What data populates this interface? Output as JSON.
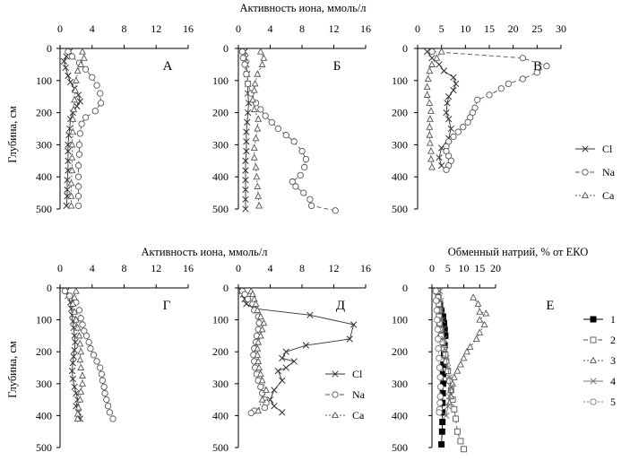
{
  "texts": {
    "top_title": "Активность иона, ммоль/л",
    "bottom_title_left": "Активность иона, ммоль/л",
    "bottom_title_right": "Обменный натрий, % от ЕКО",
    "ylabel": "Глубина, см"
  },
  "chart_data": [
    {
      "type": "line",
      "panel": "А",
      "xlim": [
        0,
        16
      ],
      "xticks": [
        0,
        4,
        8,
        12,
        16
      ],
      "ylim": [
        0,
        500
      ],
      "yticks": [
        0,
        100,
        200,
        300,
        400,
        500
      ],
      "yreversed": true,
      "series": [
        {
          "name": "Cl",
          "marker": "x",
          "line": "solid",
          "color": "#333333",
          "x": [
            1.2,
            0.8,
            0.5,
            0.7,
            1.0,
            1.3,
            1.8,
            2.3,
            2.5,
            2.1,
            1.6,
            1.3,
            1.2,
            1.1,
            1.0,
            1.0,
            1.0,
            1.0,
            0.9,
            0.9,
            0.9,
            0.8
          ],
          "y": [
            10,
            25,
            40,
            60,
            85,
            105,
            125,
            145,
            165,
            180,
            200,
            220,
            250,
            270,
            300,
            320,
            350,
            380,
            410,
            440,
            460,
            490
          ]
        },
        {
          "name": "Na",
          "marker": "o",
          "line": "dashed",
          "color": "#555555",
          "x": [
            1.0,
            1.5,
            2.4,
            3.2,
            4.0,
            4.6,
            5.0,
            5.1,
            4.4,
            3.2,
            2.7,
            2.5,
            2.4,
            2.4,
            2.3,
            2.3,
            2.3,
            2.3,
            2.3
          ],
          "y": [
            10,
            25,
            45,
            65,
            90,
            115,
            140,
            170,
            195,
            215,
            235,
            265,
            300,
            330,
            365,
            400,
            430,
            460,
            490
          ]
        },
        {
          "name": "Ca",
          "marker": "^",
          "line": "dotted",
          "color": "#555555",
          "x": [
            2.8,
            3.0,
            2.6,
            2.2,
            2.0,
            1.9,
            1.8,
            1.7,
            1.6,
            1.6,
            1.5,
            1.5,
            1.5,
            1.4,
            1.4,
            1.4
          ],
          "y": [
            10,
            30,
            50,
            70,
            100,
            130,
            160,
            190,
            220,
            260,
            300,
            340,
            380,
            420,
            460,
            490
          ]
        }
      ]
    },
    {
      "type": "line",
      "panel": "Б",
      "xlim": [
        0,
        16
      ],
      "xticks": [
        0,
        4,
        8,
        12,
        16
      ],
      "ylim": [
        0,
        500
      ],
      "yticks": [
        0,
        100,
        200,
        300,
        400,
        500
      ],
      "yreversed": true,
      "series": [
        {
          "name": "Cl",
          "marker": "x",
          "line": "solid",
          "color": "#333333",
          "x": [
            0.8,
            0.9,
            1.0,
            1.1,
            1.2,
            1.2,
            1.3,
            1.2,
            1.1,
            1.0,
            1.0,
            1.0,
            0.9,
            0.9,
            0.9,
            0.9,
            0.9,
            0.9
          ],
          "y": [
            10,
            30,
            50,
            80,
            110,
            140,
            170,
            200,
            230,
            260,
            290,
            320,
            350,
            380,
            410,
            440,
            470,
            500
          ]
        },
        {
          "name": "Na",
          "marker": "o",
          "line": "dashed",
          "color": "#555555",
          "x": [
            0.5,
            0.6,
            0.8,
            1.0,
            1.2,
            1.6,
            2.2,
            2.8,
            3.4,
            4.2,
            5.0,
            6.0,
            7.0,
            8.0,
            8.5,
            8.3,
            7.8,
            6.8,
            7.2,
            8.2,
            9.0,
            9.2,
            12.2
          ],
          "y": [
            10,
            30,
            50,
            80,
            110,
            140,
            170,
            190,
            210,
            230,
            250,
            270,
            290,
            320,
            345,
            370,
            395,
            415,
            430,
            450,
            470,
            490,
            505
          ]
        },
        {
          "name": "Ca",
          "marker": "^",
          "line": "dotted",
          "color": "#555555",
          "x": [
            2.8,
            3.2,
            3.0,
            2.4,
            2.1,
            2.0,
            1.8,
            2.0,
            2.5,
            2.4,
            2.2,
            2.0,
            2.0,
            2.2,
            2.3,
            2.4,
            2.5,
            2.6
          ],
          "y": [
            10,
            30,
            50,
            80,
            110,
            130,
            160,
            190,
            220,
            250,
            280,
            310,
            340,
            370,
            400,
            430,
            460,
            490
          ]
        }
      ]
    },
    {
      "type": "line",
      "panel": "В",
      "xlim": [
        0,
        30
      ],
      "xticks": [
        0,
        5,
        10,
        15,
        20,
        25,
        30
      ],
      "ylim": [
        0,
        500
      ],
      "yticks": [
        0,
        100,
        200,
        300,
        400,
        500
      ],
      "yreversed": true,
      "legend": {
        "position": "right",
        "entries": [
          "Cl",
          "Na",
          "Ca"
        ]
      },
      "series": [
        {
          "name": "Cl",
          "marker": "x",
          "line": "solid",
          "color": "#333333",
          "x": [
            2.0,
            3.0,
            4.5,
            5.5,
            7.5,
            8.0,
            7.5,
            6.5,
            6.2,
            6.0,
            6.5,
            7.0,
            6.5,
            5.0,
            4.5,
            5.0
          ],
          "y": [
            10,
            30,
            50,
            70,
            90,
            110,
            130,
            150,
            170,
            200,
            220,
            250,
            280,
            310,
            340,
            365
          ]
        },
        {
          "name": "Na",
          "marker": "o",
          "line": "dashed",
          "color": "#555555",
          "x": [
            3.0,
            22.0,
            27.0,
            25.0,
            22.0,
            19.0,
            17.5,
            15.0,
            12.5,
            12.0,
            11.5,
            11.0,
            10.5,
            9.5,
            8.5,
            7.5,
            6.5,
            6.0,
            6.0,
            6.5,
            7.0,
            6.5,
            6.0
          ],
          "y": [
            10,
            30,
            55,
            75,
            95,
            110,
            125,
            145,
            160,
            185,
            200,
            215,
            230,
            245,
            260,
            275,
            290,
            305,
            320,
            335,
            350,
            365,
            378
          ]
        },
        {
          "name": "Ca",
          "marker": "^",
          "line": "dotted",
          "color": "#555555",
          "x": [
            5.0,
            4.0,
            3.0,
            2.5,
            2.2,
            2.0,
            2.0,
            2.5,
            2.8,
            2.6,
            2.5,
            2.5,
            2.6,
            2.8,
            2.8,
            3.0
          ],
          "y": [
            10,
            30,
            50,
            70,
            95,
            120,
            145,
            170,
            195,
            220,
            245,
            270,
            295,
            320,
            345,
            370
          ]
        }
      ]
    },
    {
      "type": "line",
      "panel": "Г",
      "xlim": [
        0,
        16
      ],
      "xticks": [
        0,
        4,
        8,
        12,
        16
      ],
      "ylim": [
        0,
        500
      ],
      "yticks": [
        0,
        100,
        200,
        300,
        400,
        500
      ],
      "yreversed": true,
      "series": [
        {
          "name": "Cl",
          "marker": "x",
          "line": "solid",
          "color": "#333333",
          "x": [
            0.8,
            1.0,
            1.3,
            1.4,
            1.5,
            1.6,
            1.7,
            1.8,
            1.9,
            1.8,
            1.7,
            1.6,
            1.5,
            1.6,
            1.8,
            2.0,
            2.2,
            2.0,
            2.3,
            2.5
          ],
          "y": [
            10,
            25,
            45,
            65,
            85,
            105,
            125,
            150,
            170,
            195,
            215,
            235,
            260,
            285,
            310,
            330,
            350,
            370,
            390,
            410
          ]
        },
        {
          "name": "Na",
          "marker": "o",
          "line": "dashed",
          "color": "#555555",
          "x": [
            0.6,
            1.2,
            2.0,
            2.4,
            2.6,
            2.8,
            3.0,
            3.3,
            3.6,
            3.8,
            4.2,
            4.6,
            5.0,
            5.2,
            5.3,
            5.5,
            5.6,
            5.8,
            6.0,
            6.2,
            6.6
          ],
          "y": [
            10,
            25,
            45,
            70,
            95,
            115,
            135,
            150,
            170,
            190,
            210,
            230,
            250,
            270,
            290,
            310,
            330,
            350,
            370,
            390,
            410
          ]
        },
        {
          "name": "Ca",
          "marker": "^",
          "line": "dotted",
          "color": "#555555",
          "x": [
            2.0,
            1.8,
            1.6,
            1.8,
            2.0,
            2.2,
            2.4,
            2.5,
            2.6,
            2.5,
            2.6,
            2.8,
            2.8,
            2.6,
            2.5,
            2.3,
            2.2,
            2.2
          ],
          "y": [
            10,
            30,
            50,
            75,
            100,
            125,
            150,
            175,
            200,
            225,
            250,
            275,
            300,
            325,
            350,
            375,
            395,
            410
          ]
        }
      ]
    },
    {
      "type": "line",
      "panel": "Д",
      "xlim": [
        0,
        16
      ],
      "xticks": [
        0,
        4,
        8,
        12,
        16
      ],
      "ylim": [
        0,
        500
      ],
      "yticks": [
        0,
        100,
        200,
        300,
        400,
        500
      ],
      "yreversed": true,
      "legend": {
        "position": "lower right",
        "entries": [
          "Cl",
          "Na",
          "Ca"
        ]
      },
      "series": [
        {
          "name": "Cl",
          "marker": "x",
          "line": "solid",
          "color": "#333333",
          "x": [
            0.4,
            0.6,
            0.8,
            1.0,
            2.0,
            9.0,
            14.5,
            14.0,
            8.5,
            6.0,
            5.5,
            7.0,
            6.0,
            5.0,
            5.5,
            4.5,
            4.0,
            4.5,
            5.5
          ],
          "y": [
            10,
            20,
            35,
            50,
            65,
            85,
            115,
            160,
            180,
            200,
            220,
            230,
            250,
            260,
            290,
            320,
            350,
            370,
            390
          ]
        },
        {
          "name": "Na",
          "marker": "o",
          "line": "dashed",
          "color": "#555555",
          "x": [
            0.5,
            0.8,
            1.2,
            1.8,
            2.0,
            2.5,
            2.6,
            2.5,
            2.3,
            2.2,
            2.0,
            1.9,
            2.0,
            2.1,
            2.3,
            2.5,
            2.8,
            3.0,
            3.3,
            3.5,
            3.3,
            2.0,
            1.6
          ],
          "y": [
            10,
            20,
            35,
            50,
            70,
            90,
            110,
            130,
            150,
            170,
            190,
            210,
            230,
            250,
            270,
            290,
            310,
            330,
            350,
            360,
            375,
            385,
            392
          ]
        },
        {
          "name": "Ca",
          "marker": "^",
          "line": "dotted",
          "color": "#555555",
          "x": [
            1.6,
            1.8,
            2.0,
            2.2,
            2.4,
            2.8,
            3.2,
            3.0,
            2.8,
            2.5,
            2.4,
            2.4,
            2.5,
            2.6,
            2.8,
            3.0,
            3.5,
            3.0,
            2.5
          ],
          "y": [
            10,
            20,
            35,
            50,
            70,
            90,
            110,
            130,
            150,
            170,
            190,
            210,
            230,
            250,
            270,
            290,
            320,
            350,
            385
          ]
        }
      ]
    },
    {
      "type": "line",
      "panel": "Е",
      "xlim": [
        0,
        20
      ],
      "xticks": [
        0,
        5,
        10,
        15,
        20
      ],
      "ylim": [
        0,
        500
      ],
      "yticks": [
        0,
        100,
        200,
        300,
        400,
        500
      ],
      "yreversed": true,
      "legend": {
        "position": "right",
        "entries": [
          "1",
          "2",
          "3",
          "4",
          "5"
        ]
      },
      "series": [
        {
          "name": "1",
          "marker": "s_filled",
          "line": "solid",
          "color": "#000000",
          "x": [
            1.5,
            2.0,
            2.5,
            3.0,
            3.5,
            3.8,
            4.0,
            4.2,
            4.0,
            3.8,
            3.6,
            3.5,
            3.5,
            3.4,
            3.3,
            3.3,
            3.3,
            3.2,
            3.0
          ],
          "y": [
            10,
            30,
            50,
            70,
            90,
            110,
            130,
            150,
            180,
            210,
            240,
            270,
            300,
            330,
            360,
            390,
            420,
            450,
            490
          ]
        },
        {
          "name": "2",
          "marker": "s_open",
          "line": "dashed",
          "color": "#555555",
          "x": [
            1.8,
            2.0,
            2.2,
            2.3,
            2.2,
            2.3,
            2.6,
            3.0,
            3.4,
            3.8,
            4.2,
            4.5,
            5.0,
            5.5,
            6.0,
            6.5,
            7.0,
            7.5,
            8.0,
            9.0,
            10.0
          ],
          "y": [
            10,
            30,
            50,
            70,
            90,
            110,
            130,
            150,
            170,
            190,
            210,
            230,
            260,
            290,
            320,
            350,
            380,
            410,
            450,
            480,
            505
          ]
        },
        {
          "name": "3",
          "marker": "^",
          "line": "dotted",
          "color": "#555555",
          "x": [
            13.0,
            14.5,
            15.0,
            17.0,
            15.0,
            16.5,
            15.0,
            14.0,
            12.0,
            11.0,
            10.0,
            9.0,
            8.0,
            7.0,
            6.5,
            6.0,
            6.0,
            5.5
          ],
          "y": [
            30,
            50,
            75,
            80,
            100,
            115,
            140,
            160,
            185,
            200,
            220,
            240,
            260,
            280,
            300,
            320,
            340,
            360
          ]
        },
        {
          "name": "4",
          "marker": "x",
          "line": "solid",
          "color": "#777777",
          "x": [
            2.5,
            2.8,
            3.0,
            3.2,
            3.5,
            3.8,
            4.0,
            4.5,
            5.0,
            5.5,
            6.0,
            5.5,
            5.0,
            4.5
          ],
          "y": [
            10,
            40,
            70,
            100,
            130,
            160,
            190,
            220,
            250,
            280,
            310,
            340,
            370,
            400
          ]
        },
        {
          "name": "5",
          "marker": "o",
          "line": "dotted",
          "color": "#777777",
          "x": [
            1.2,
            1.3,
            1.5,
            1.6,
            1.8,
            1.9,
            2.0,
            2.2,
            2.4,
            2.6,
            2.7,
            2.6,
            2.5,
            2.4,
            2.3
          ],
          "y": [
            10,
            40,
            70,
            100,
            130,
            160,
            190,
            220,
            250,
            280,
            310,
            340,
            360,
            380,
            390
          ]
        }
      ]
    }
  ]
}
